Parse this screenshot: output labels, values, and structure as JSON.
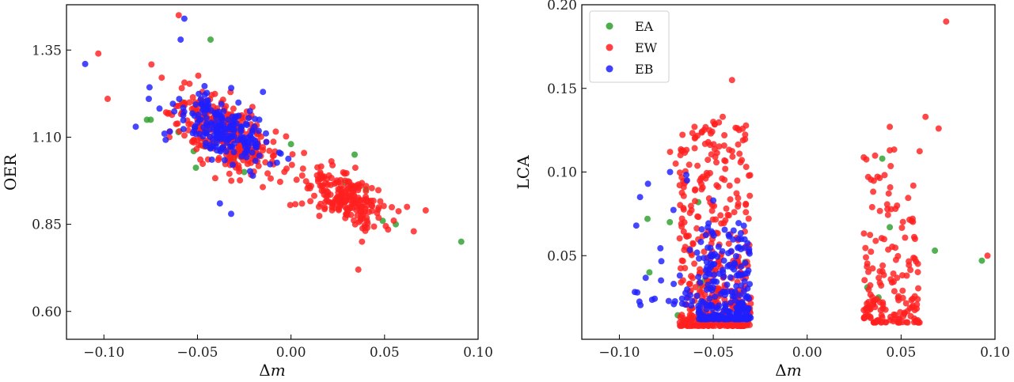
{
  "chart_data": [
    {
      "type": "scatter",
      "xlabel": "Δm",
      "ylabel": "OER",
      "xlim": [
        -0.12,
        0.1
      ],
      "ylim": [
        0.52,
        1.48
      ],
      "xticks": [
        -0.1,
        -0.05,
        0.0,
        0.05,
        0.1
      ],
      "xtick_labels": [
        "−0.10",
        "−0.05",
        "0.00",
        "0.05",
        "0.10"
      ],
      "yticks": [
        0.6,
        0.85,
        1.1,
        1.35
      ],
      "ytick_labels": [
        "0.60",
        "0.85",
        "1.10",
        "1.35"
      ],
      "legend": null,
      "series": [
        {
          "name": "EA",
          "color": "#2ca02c",
          "clusters": [
            {
              "n": 6,
              "cx": -0.042,
              "cy": 1.12,
              "sx": 0.016,
              "sy": 0.07,
              "seed": 11
            }
          ],
          "points": [
            [
              -0.043,
              1.38
            ],
            [
              -0.077,
              1.15
            ],
            [
              -0.075,
              1.15
            ],
            [
              0.0,
              1.08
            ],
            [
              0.034,
              1.05
            ],
            [
              0.029,
              0.97
            ],
            [
              0.04,
              0.95
            ],
            [
              0.049,
              0.86
            ],
            [
              0.056,
              0.85
            ],
            [
              0.091,
              0.8
            ],
            [
              -0.025,
              1.0
            ],
            [
              -0.052,
              1.06
            ],
            [
              -0.058,
              1.2
            ]
          ]
        },
        {
          "name": "EW",
          "color": "#ff2020",
          "clusters": [
            {
              "n": 330,
              "cx": -0.035,
              "cy": 1.11,
              "sx": 0.014,
              "sy": 0.06,
              "seed": 21
            },
            {
              "n": 210,
              "cx": 0.028,
              "cy": 0.93,
              "sx": 0.012,
              "sy": 0.04,
              "seed": 22
            }
          ],
          "points": [
            [
              -0.103,
              1.34
            ],
            [
              -0.098,
              1.21
            ],
            [
              -0.06,
              1.45
            ],
            [
              0.036,
              0.72
            ],
            [
              0.072,
              0.89
            ],
            [
              -0.065,
              1.1
            ],
            [
              -0.01,
              1.03
            ],
            [
              0.062,
              0.9
            ]
          ]
        },
        {
          "name": "EB",
          "color": "#1f1fff",
          "clusters": [
            {
              "n": 200,
              "cx": -0.036,
              "cy": 1.12,
              "sx": 0.012,
              "sy": 0.05,
              "seed": 31
            }
          ],
          "points": [
            [
              -0.11,
              1.31
            ],
            [
              -0.059,
              1.38
            ],
            [
              -0.057,
              1.44
            ],
            [
              -0.032,
              0.88
            ],
            [
              -0.038,
              0.91
            ],
            [
              -0.083,
              1.13
            ],
            [
              -0.076,
              1.21
            ],
            [
              -0.017,
              1.15
            ],
            [
              -0.015,
              1.23
            ]
          ]
        }
      ]
    },
    {
      "type": "scatter",
      "xlabel": "Δm",
      "ylabel": "LCA",
      "xlim": [
        -0.12,
        0.1
      ],
      "ylim": [
        0.0,
        0.2
      ],
      "xticks": [
        -0.1,
        -0.05,
        0.0,
        0.05,
        0.1
      ],
      "xtick_labels": [
        "−0.10",
        "−0.05",
        "0.00",
        "0.05",
        "0.10"
      ],
      "yticks": [
        0.05,
        0.1,
        0.15,
        0.2
      ],
      "ytick_labels": [
        "0.05",
        "0.10",
        "0.15",
        "0.20"
      ],
      "legend": {
        "position": "top-left",
        "entries": [
          {
            "label": "EA",
            "color": "#2ca02c"
          },
          {
            "label": "EW",
            "color": "#ff2020"
          },
          {
            "label": "EB",
            "color": "#1f1fff"
          }
        ]
      },
      "series": [
        {
          "name": "EA",
          "color": "#2ca02c",
          "clusters": [
            {
              "n": 8,
              "cx": -0.05,
              "cy": 0.04,
              "sx": 0.012,
              "sy": 0.02,
              "seed": 41
            }
          ],
          "points": [
            [
              -0.085,
              0.072
            ],
            [
              -0.084,
              0.04
            ],
            [
              -0.066,
              0.011
            ],
            [
              -0.058,
              0.082
            ],
            [
              0.04,
              0.108
            ],
            [
              0.044,
              0.067
            ],
            [
              0.032,
              0.031
            ],
            [
              0.038,
              0.025
            ],
            [
              0.068,
              0.053
            ],
            [
              0.093,
              0.047
            ]
          ]
        },
        {
          "name": "EW",
          "color": "#ff2020",
          "strips": [
            {
              "n": 420,
              "x0": -0.068,
              "x1": -0.03,
              "ymin": 0.008,
              "ymax": 0.13,
              "decay": 2.4,
              "seed": 51
            },
            {
              "n": 170,
              "x0": 0.03,
              "x1": 0.06,
              "ymin": 0.01,
              "ymax": 0.115,
              "decay": 2.6,
              "seed": 52
            }
          ],
          "points": [
            [
              -0.04,
              0.155
            ],
            [
              -0.045,
              0.133
            ],
            [
              -0.05,
              0.13
            ],
            [
              -0.06,
              0.127
            ],
            [
              -0.052,
              0.125
            ],
            [
              0.074,
              0.19
            ],
            [
              0.063,
              0.133
            ],
            [
              0.07,
              0.126
            ],
            [
              0.044,
              0.127
            ],
            [
              0.096,
              0.05
            ],
            [
              -0.073,
              0.112
            ],
            [
              -0.07,
              0.105
            ]
          ]
        },
        {
          "name": "EB",
          "color": "#1f1fff",
          "strips": [
            {
              "n": 260,
              "x0": -0.058,
              "x1": -0.03,
              "ymin": 0.012,
              "ymax": 0.07,
              "decay": 3.0,
              "seed": 61
            },
            {
              "n": 30,
              "x0": -0.092,
              "x1": -0.058,
              "ymin": 0.02,
              "ymax": 0.1,
              "decay": 1.8,
              "seed": 62
            }
          ],
          "points": [
            [
              -0.091,
              0.068
            ],
            [
              -0.089,
              0.085
            ],
            [
              -0.073,
              0.1
            ],
            [
              -0.064,
              0.095
            ],
            [
              -0.05,
              0.083
            ]
          ]
        }
      ]
    }
  ]
}
